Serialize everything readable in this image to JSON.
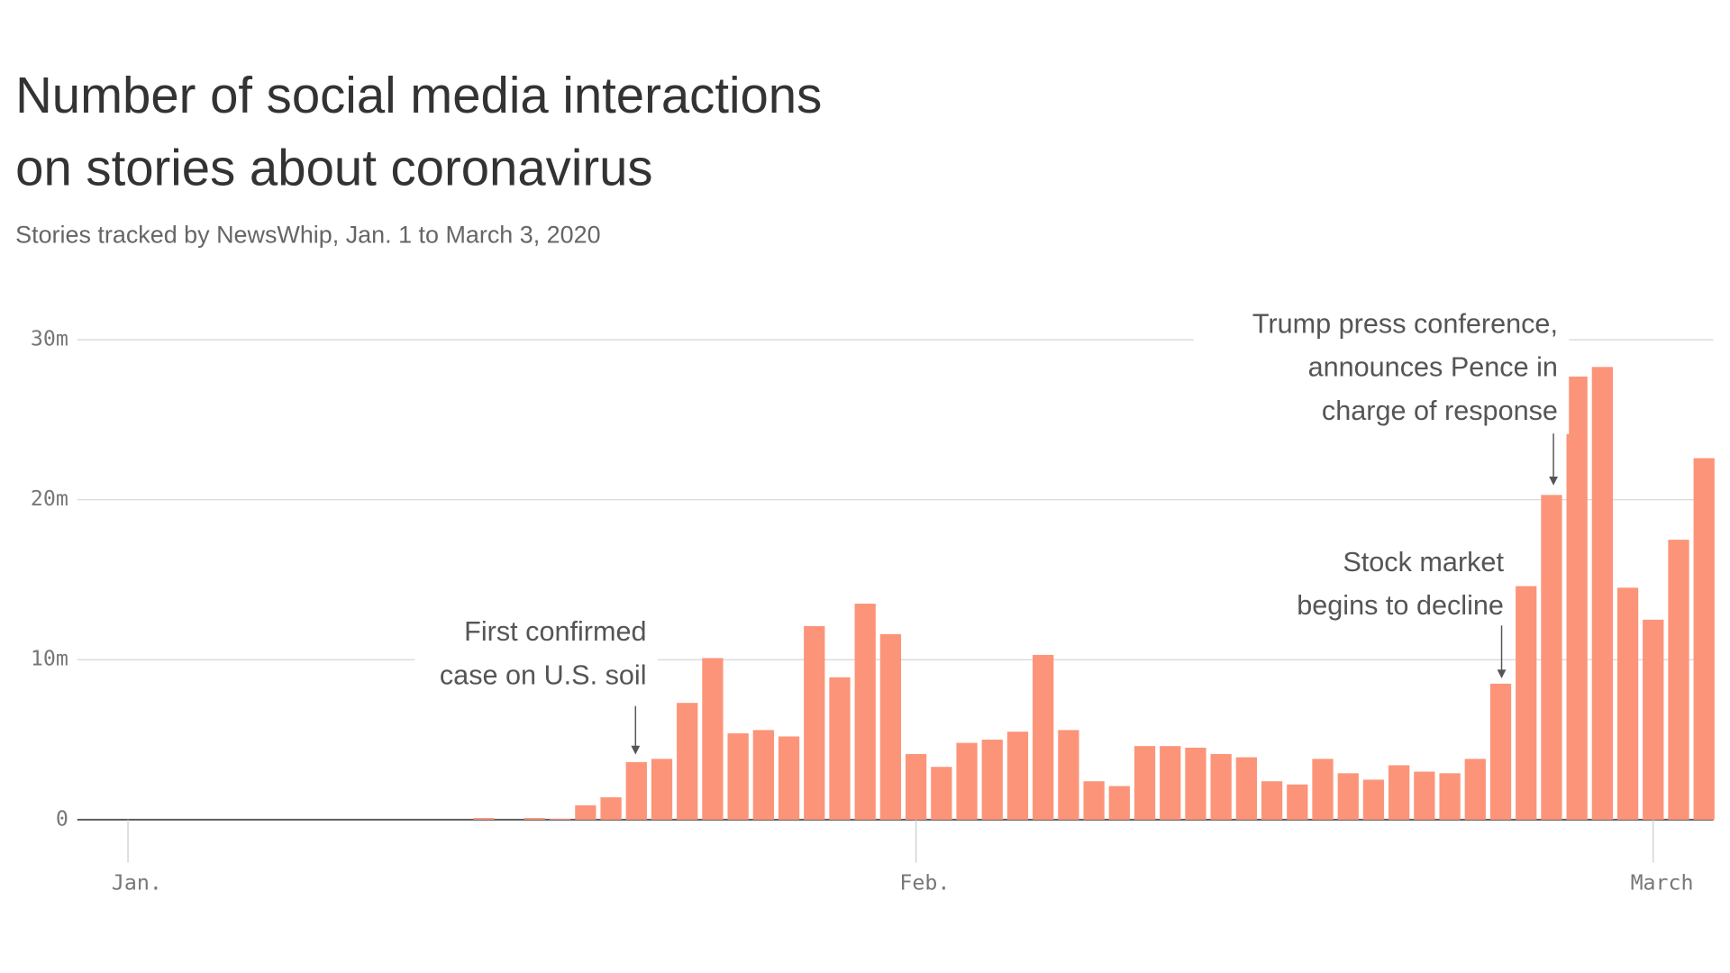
{
  "chart_data": {
    "type": "bar",
    "title": [
      "Number of social media interactions",
      "on stories about coronavirus"
    ],
    "subtitle": "Stories tracked by NewsWhip, Jan. 1 to March 3, 2020",
    "categories": [
      "Jan.",
      null,
      null,
      null,
      null,
      null,
      null,
      null,
      null,
      null,
      null,
      null,
      null,
      null,
      null,
      null,
      null,
      null,
      null,
      null,
      null,
      null,
      null,
      null,
      null,
      null,
      null,
      null,
      null,
      null,
      null,
      "Feb.",
      null,
      null,
      null,
      null,
      null,
      null,
      null,
      null,
      null,
      null,
      null,
      null,
      null,
      null,
      null,
      null,
      null,
      null,
      null,
      null,
      null,
      null,
      null,
      null,
      null,
      null,
      null,
      null,
      "March",
      null,
      null
    ],
    "values": [
      0,
      0,
      0,
      0,
      0,
      0,
      0,
      0,
      0,
      0,
      0,
      0,
      0,
      0,
      0.1,
      0,
      0.1,
      0.05,
      0.9,
      1.4,
      3.6,
      3.8,
      7.3,
      10.1,
      5.4,
      5.6,
      5.2,
      12.1,
      8.9,
      13.5,
      11.6,
      4.1,
      3.3,
      4.8,
      5.0,
      5.5,
      10.3,
      5.6,
      2.4,
      2.1,
      4.6,
      4.6,
      4.5,
      4.1,
      3.9,
      2.4,
      2.2,
      3.8,
      2.9,
      2.5,
      3.4,
      3.0,
      2.9,
      3.8,
      8.5,
      14.6,
      20.3,
      27.7,
      28.3,
      14.5,
      12.5,
      17.5,
      22.6
    ],
    "color": "#fc9479",
    "ylim": [
      0,
      30
    ],
    "yticks": [
      0,
      {
        "value": 10,
        "label": "10m"
      },
      {
        "value": 20,
        "label": "20m"
      },
      {
        "value": 30,
        "label": "30m"
      }
    ],
    "grid": true,
    "annotations": [
      {
        "text": [
          "First confirmed",
          "case on U.S. soil"
        ]
      },
      {
        "text": [
          "Trump press conference,",
          "announces Pence in",
          "charge of response"
        ]
      },
      {
        "text": [
          "Stock market",
          "begins to decline"
        ]
      }
    ]
  }
}
